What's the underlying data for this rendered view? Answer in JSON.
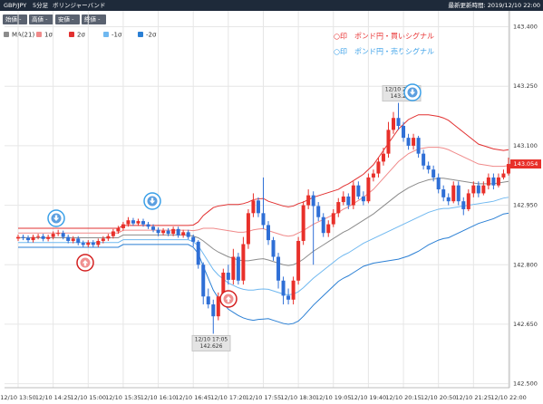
{
  "header": {
    "symbol": "GBP/JPY",
    "timeframe": "5分足",
    "indicator": "ボリンジャーバンド",
    "updated": "最新更新時間: 2019/12/10 22:00"
  },
  "controls": [
    "始値 -",
    "高値 -",
    "安値 -",
    "終値 -"
  ],
  "chart_data": {
    "type": "candlestick",
    "categories": [
      "12/10 13:50",
      null,
      null,
      null,
      null,
      null,
      null,
      "12/10 14:25",
      null,
      null,
      null,
      null,
      null,
      null,
      "12/10 15:00",
      null,
      null,
      null,
      null,
      null,
      null,
      "12/10 15:35",
      null,
      null,
      null,
      null,
      null,
      null,
      "12/10 16:10",
      null,
      null,
      null,
      null,
      null,
      null,
      "12/10 16:45",
      null,
      null,
      null,
      null,
      null,
      null,
      "12/10 17:20",
      null,
      null,
      null,
      null,
      null,
      null,
      "12/10 17:55",
      null,
      null,
      null,
      null,
      null,
      null,
      "12/10 18:30",
      null,
      null,
      null,
      null,
      null,
      null,
      "12/10 19:05",
      null,
      null,
      null,
      null,
      null,
      null,
      "12/10 19:40",
      null,
      null,
      null,
      null,
      null,
      null,
      "12/10 20:15",
      null,
      null,
      null,
      null,
      null,
      null,
      "12/10 20:50",
      null,
      null,
      null,
      null,
      null,
      null,
      "12/10 21:25",
      null,
      null,
      null,
      null,
      null,
      null,
      "12/10 22:00"
    ],
    "open": [
      142.866,
      142.87,
      142.868,
      142.862,
      142.87,
      142.872,
      142.865,
      142.87,
      142.878,
      142.88,
      142.87,
      142.86,
      142.866,
      142.855,
      142.85,
      142.856,
      142.85,
      142.86,
      142.866,
      142.872,
      142.884,
      142.892,
      142.902,
      142.912,
      142.904,
      142.91,
      142.902,
      142.896,
      142.888,
      142.88,
      142.886,
      142.878,
      142.89,
      142.874,
      142.882,
      142.87,
      142.858,
      142.8,
      142.72,
      142.7,
      142.67,
      142.72,
      142.78,
      142.762,
      142.82,
      142.76,
      142.852,
      142.93,
      142.962,
      142.93,
      142.9,
      142.862,
      142.82,
      142.76,
      142.722,
      142.712,
      142.76,
      142.86,
      142.95,
      142.975,
      142.948,
      142.92,
      142.88,
      142.902,
      142.93,
      142.958,
      142.972,
      142.95,
      143.0,
      142.972,
      142.96,
      143.02,
      143.03,
      143.06,
      143.08,
      143.14,
      143.17,
      143.15,
      143.12,
      143.1,
      143.12,
      143.08,
      143.05,
      143.04,
      143.02,
      142.99,
      142.97,
      142.96,
      143.0,
      142.96,
      142.94,
      142.98,
      143.0,
      142.98,
      143.0,
      143.02,
      143.0,
      143.02,
      143.03
    ],
    "high": [
      142.876,
      142.876,
      142.874,
      142.876,
      142.878,
      142.878,
      142.876,
      142.884,
      142.888,
      142.886,
      142.876,
      142.872,
      142.872,
      142.861,
      142.862,
      142.862,
      142.866,
      142.872,
      142.878,
      142.89,
      142.898,
      142.908,
      142.92,
      142.918,
      142.916,
      142.916,
      142.908,
      142.902,
      142.894,
      142.892,
      142.892,
      142.896,
      142.896,
      142.888,
      142.888,
      142.876,
      142.862,
      142.806,
      142.74,
      142.712,
      142.73,
      142.79,
      142.8,
      142.84,
      142.83,
      142.87,
      142.94,
      142.98,
      142.97,
      143.02,
      142.91,
      142.87,
      142.83,
      142.77,
      142.74,
      142.77,
      142.87,
      142.96,
      142.99,
      142.985,
      142.958,
      142.93,
      142.912,
      142.94,
      142.968,
      142.985,
      142.98,
      143.01,
      143.01,
      142.985,
      143.03,
      143.04,
      143.07,
      143.095,
      143.16,
      143.185,
      143.208,
      143.16,
      143.13,
      143.13,
      143.125,
      143.09,
      143.06,
      143.05,
      143.03,
      143.0,
      142.98,
      143.01,
      143.01,
      142.97,
      142.99,
      143.01,
      143.01,
      143.01,
      143.03,
      143.03,
      143.03,
      143.04,
      143.07
    ],
    "low": [
      142.86,
      142.862,
      142.856,
      142.856,
      142.864,
      142.859,
      142.859,
      142.864,
      142.872,
      142.864,
      142.854,
      142.854,
      142.849,
      142.844,
      142.844,
      142.844,
      142.844,
      142.854,
      142.86,
      142.866,
      142.878,
      142.886,
      142.896,
      142.898,
      142.898,
      142.896,
      142.89,
      142.882,
      142.872,
      142.874,
      142.872,
      142.872,
      142.868,
      142.868,
      142.864,
      142.846,
      142.79,
      142.7,
      142.69,
      142.626,
      142.66,
      142.71,
      142.75,
      142.75,
      142.75,
      142.75,
      142.84,
      142.92,
      142.92,
      142.89,
      142.85,
      142.81,
      142.74,
      142.7,
      142.7,
      142.7,
      142.75,
      142.85,
      142.94,
      142.8,
      142.91,
      142.87,
      142.87,
      142.895,
      142.92,
      142.95,
      142.94,
      142.94,
      142.965,
      142.95,
      142.955,
      143.01,
      143.02,
      143.05,
      143.07,
      143.13,
      143.14,
      143.11,
      143.09,
      143.09,
      143.07,
      143.04,
      143.03,
      143.01,
      142.98,
      142.96,
      142.95,
      142.955,
      142.95,
      142.925,
      142.935,
      142.97,
      142.97,
      142.975,
      142.99,
      142.99,
      142.995,
      143.015,
      143.025
    ],
    "close": [
      142.87,
      142.868,
      142.862,
      142.87,
      142.872,
      142.865,
      142.87,
      142.878,
      142.88,
      142.87,
      142.86,
      142.866,
      142.855,
      142.85,
      142.856,
      142.85,
      142.86,
      142.866,
      142.872,
      142.884,
      142.892,
      142.902,
      142.912,
      142.904,
      142.91,
      142.902,
      142.896,
      142.888,
      142.88,
      142.886,
      142.878,
      142.89,
      142.874,
      142.882,
      142.87,
      142.858,
      142.8,
      142.72,
      142.7,
      142.67,
      142.72,
      142.78,
      142.762,
      142.82,
      142.76,
      142.852,
      142.93,
      142.962,
      142.93,
      142.9,
      142.862,
      142.82,
      142.76,
      142.722,
      142.712,
      142.76,
      142.86,
      142.95,
      142.975,
      142.948,
      142.92,
      142.88,
      142.902,
      142.93,
      142.958,
      142.972,
      142.95,
      143.0,
      142.972,
      142.96,
      143.02,
      143.03,
      143.06,
      143.08,
      143.14,
      143.17,
      143.15,
      143.12,
      143.1,
      143.12,
      143.08,
      143.05,
      143.04,
      143.02,
      142.99,
      142.97,
      142.96,
      143.0,
      142.96,
      142.94,
      142.98,
      143.0,
      142.98,
      143.0,
      143.02,
      143.0,
      143.02,
      143.03,
      143.054
    ],
    "up_color": "#e8302a",
    "down_color": "#2f6fd6",
    "series": [
      {
        "name": "MA(21)",
        "color": "#8c8c8c",
        "values": [
          142.868,
          142.868,
          142.868,
          142.868,
          142.868,
          142.868,
          142.868,
          142.868,
          142.868,
          142.868,
          142.868,
          142.868,
          142.868,
          142.868,
          142.868,
          142.868,
          142.868,
          142.868,
          142.868,
          142.868,
          142.868,
          142.875,
          142.875,
          142.875,
          142.875,
          142.875,
          142.875,
          142.875,
          142.875,
          142.875,
          142.875,
          142.875,
          142.875,
          142.875,
          142.875,
          142.872,
          142.868,
          142.86,
          142.85,
          142.84,
          142.832,
          142.826,
          142.82,
          142.816,
          142.812,
          142.81,
          142.81,
          142.812,
          142.814,
          142.815,
          142.812,
          142.808,
          142.804,
          142.8,
          142.798,
          142.8,
          142.806,
          142.814,
          142.824,
          142.834,
          142.842,
          142.85,
          142.858,
          142.866,
          142.874,
          142.882,
          142.888,
          142.896,
          142.904,
          142.912,
          142.92,
          142.928,
          142.938,
          142.948,
          142.958,
          142.968,
          142.978,
          142.986,
          142.994,
          143.0,
          143.006,
          143.01,
          143.014,
          143.016,
          143.018,
          143.018,
          143.016,
          143.014,
          143.012,
          143.01,
          143.008,
          143.006,
          143.004,
          143.004,
          143.004,
          143.004,
          143.006,
          143.008,
          143.01
        ]
      },
      {
        "name": "1σ",
        "color": "#f08a8a",
        "values": [
          142.88,
          142.88,
          142.88,
          142.88,
          142.88,
          142.88,
          142.88,
          142.88,
          142.88,
          142.88,
          142.88,
          142.88,
          142.88,
          142.88,
          142.88,
          142.88,
          142.88,
          142.88,
          142.88,
          142.88,
          142.88,
          142.887,
          142.887,
          142.887,
          142.887,
          142.887,
          142.887,
          142.887,
          142.887,
          142.887,
          142.887,
          142.887,
          142.887,
          142.887,
          142.887,
          142.886,
          142.888,
          142.892,
          142.892,
          142.892,
          142.89,
          142.888,
          142.886,
          142.884,
          142.882,
          142.882,
          142.884,
          142.888,
          142.89,
          142.891,
          142.886,
          142.882,
          142.878,
          142.874,
          142.872,
          142.874,
          142.88,
          142.886,
          142.894,
          142.902,
          142.908,
          142.914,
          142.92,
          142.926,
          142.932,
          142.94,
          142.946,
          142.954,
          142.962,
          142.97,
          142.98,
          142.99,
          143.004,
          143.018,
          143.032,
          143.046,
          143.06,
          143.07,
          143.08,
          143.086,
          143.092,
          143.094,
          143.096,
          143.096,
          143.096,
          143.094,
          143.09,
          143.084,
          143.078,
          143.072,
          143.066,
          143.06,
          143.054,
          143.052,
          143.05,
          143.048,
          143.048,
          143.048,
          143.05
        ]
      },
      {
        "name": "2σ",
        "color": "#e23030",
        "values": [
          142.892,
          142.892,
          142.892,
          142.892,
          142.892,
          142.892,
          142.892,
          142.892,
          142.892,
          142.892,
          142.892,
          142.892,
          142.892,
          142.892,
          142.892,
          142.892,
          142.892,
          142.892,
          142.892,
          142.892,
          142.892,
          142.899,
          142.899,
          142.899,
          142.899,
          142.899,
          142.899,
          142.899,
          142.899,
          142.899,
          142.899,
          142.899,
          142.899,
          142.899,
          142.899,
          142.9,
          142.908,
          142.924,
          142.934,
          142.944,
          142.948,
          142.95,
          142.952,
          142.952,
          142.952,
          142.954,
          142.958,
          142.964,
          142.966,
          142.967,
          142.96,
          142.956,
          142.952,
          142.948,
          142.946,
          142.948,
          142.954,
          142.958,
          142.964,
          142.97,
          142.974,
          142.978,
          142.982,
          142.986,
          142.99,
          142.998,
          143.004,
          143.012,
          143.02,
          143.028,
          143.04,
          143.052,
          143.07,
          143.088,
          143.106,
          143.124,
          143.142,
          143.154,
          143.166,
          143.172,
          143.178,
          143.178,
          143.178,
          143.176,
          143.174,
          143.17,
          143.164,
          143.154,
          143.144,
          143.134,
          143.124,
          143.114,
          143.104,
          143.1,
          143.096,
          143.092,
          143.09,
          143.088,
          143.09
        ]
      },
      {
        "name": "-1σ",
        "color": "#6fb8f0",
        "values": [
          142.856,
          142.856,
          142.856,
          142.856,
          142.856,
          142.856,
          142.856,
          142.856,
          142.856,
          142.856,
          142.856,
          142.856,
          142.856,
          142.856,
          142.856,
          142.856,
          142.856,
          142.856,
          142.856,
          142.856,
          142.856,
          142.863,
          142.863,
          142.863,
          142.863,
          142.863,
          142.863,
          142.863,
          142.863,
          142.863,
          142.863,
          142.863,
          142.863,
          142.863,
          142.863,
          142.858,
          142.848,
          142.828,
          142.808,
          142.788,
          142.774,
          142.764,
          142.754,
          142.748,
          142.742,
          142.738,
          142.736,
          142.736,
          142.738,
          142.739,
          142.738,
          142.734,
          142.73,
          142.726,
          142.724,
          142.726,
          142.732,
          142.742,
          142.754,
          142.766,
          142.776,
          142.786,
          142.796,
          142.806,
          142.816,
          142.824,
          142.83,
          142.838,
          142.846,
          142.854,
          142.86,
          142.866,
          142.872,
          142.878,
          142.884,
          142.89,
          142.896,
          142.902,
          142.908,
          142.914,
          142.92,
          142.926,
          142.932,
          142.936,
          142.94,
          142.942,
          142.942,
          142.944,
          142.946,
          142.948,
          142.95,
          142.952,
          142.954,
          142.956,
          142.958,
          142.96,
          142.964,
          142.968,
          142.97
        ]
      },
      {
        "name": "-2σ",
        "color": "#2a7fd4",
        "values": [
          142.844,
          142.844,
          142.844,
          142.844,
          142.844,
          142.844,
          142.844,
          142.844,
          142.844,
          142.844,
          142.844,
          142.844,
          142.844,
          142.844,
          142.844,
          142.844,
          142.844,
          142.844,
          142.844,
          142.844,
          142.844,
          142.851,
          142.851,
          142.851,
          142.851,
          142.851,
          142.851,
          142.851,
          142.851,
          142.851,
          142.851,
          142.851,
          142.851,
          142.851,
          142.851,
          142.844,
          142.828,
          142.796,
          142.766,
          142.736,
          142.716,
          142.702,
          142.688,
          142.68,
          142.672,
          142.666,
          142.662,
          142.66,
          142.662,
          142.663,
          142.664,
          142.66,
          142.656,
          142.652,
          142.65,
          142.652,
          142.658,
          142.67,
          142.684,
          142.698,
          142.71,
          142.722,
          142.734,
          142.746,
          142.758,
          142.766,
          142.772,
          142.78,
          142.788,
          142.796,
          142.8,
          142.804,
          142.806,
          142.808,
          142.81,
          142.812,
          142.814,
          142.818,
          142.822,
          142.828,
          142.834,
          142.842,
          142.85,
          142.856,
          142.862,
          142.866,
          142.868,
          142.874,
          142.88,
          142.886,
          142.892,
          142.898,
          142.904,
          142.908,
          142.912,
          142.916,
          142.922,
          142.928,
          142.93
        ]
      }
    ],
    "ylim": [
      142.49,
      143.44
    ],
    "yticks": [
      {
        "value": 143.4,
        "label": "143.400"
      },
      {
        "value": 143.25,
        "label": "143.250"
      },
      {
        "value": 143.1,
        "label": "143.100"
      },
      {
        "value": 142.95,
        "label": "142.950"
      },
      {
        "value": 142.8,
        "label": "142.800"
      },
      {
        "value": 142.65,
        "label": "142.650"
      },
      {
        "value": 142.5,
        "label": "142.500"
      }
    ],
    "grid": true,
    "signal_notes": [
      {
        "text": "○印　ポンド円・買いシグナル",
        "color": "#e83030"
      },
      {
        "text": "○印　ポンド円・売りシグナル",
        "color": "#3aa0e8"
      }
    ],
    "annotations": [
      {
        "label": "12/10 20:10",
        "value": 143.208
      },
      {
        "label": "12/10 17:05",
        "value": 142.626
      }
    ]
  }
}
